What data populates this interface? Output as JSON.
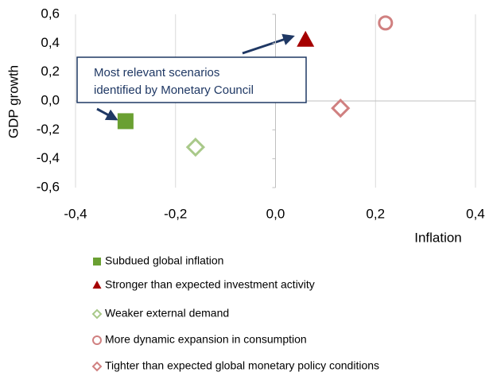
{
  "chart_data": {
    "type": "scatter",
    "x_label": "Inflation",
    "y_label": "GDP growth",
    "annotation": [
      "Most relevant scenarios",
      "identified by Monetary Council"
    ],
    "xlim": [
      -0.4,
      0.4
    ],
    "ylim": [
      -0.6,
      0.6
    ],
    "xticks": [
      {
        "value": -0.4,
        "label": "-0,4"
      },
      {
        "value": -0.2,
        "label": "-0,2"
      },
      {
        "value": 0,
        "label": "0,0"
      },
      {
        "value": 0.2,
        "label": "0,2"
      },
      {
        "value": 0.4,
        "label": "0,4"
      }
    ],
    "yticks": [
      {
        "value": 0.6,
        "label": "0,6"
      },
      {
        "value": 0.4,
        "label": "0,4"
      },
      {
        "value": 0.2,
        "label": "0,2"
      },
      {
        "value": 0,
        "label": "0,0"
      },
      {
        "value": -0.2,
        "label": "-0,2"
      },
      {
        "value": -0.4,
        "label": "-0,4"
      },
      {
        "value": -0.6,
        "label": "-0,6"
      }
    ],
    "grid": "x",
    "series": [
      {
        "name": "Subdued global inflation",
        "color": "#6aa032",
        "marker": "square",
        "filled": true,
        "x": [
          -0.3
        ],
        "values": [
          -0.14
        ]
      },
      {
        "name": "Stronger than expected investment activity",
        "color": "#a50000",
        "marker": "triangle",
        "filled": true,
        "x": [
          0.06
        ],
        "values": [
          0.42
        ]
      },
      {
        "name": "Weaker external demand",
        "color": "#a9c98a",
        "marker": "diamond",
        "filled": false,
        "x": [
          -0.16
        ],
        "values": [
          -0.32
        ]
      },
      {
        "name": "More dynamic expansion in consumption",
        "color": "#d08080",
        "marker": "circle",
        "filled": false,
        "x": [
          0.22
        ],
        "values": [
          0.54
        ]
      },
      {
        "name": "Tighter than expected global monetary policy conditions",
        "color": "#d08080",
        "marker": "diamond",
        "filled": false,
        "x": [
          0.13
        ],
        "values": [
          -0.05
        ]
      }
    ]
  }
}
